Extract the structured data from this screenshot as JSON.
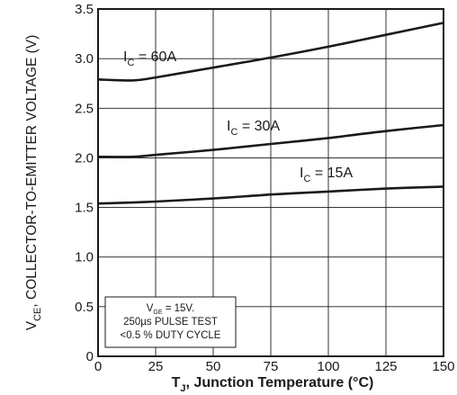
{
  "chart_data": {
    "type": "line",
    "xlim": [
      0,
      150
    ],
    "ylim": [
      0,
      3.5
    ],
    "x_ticks": [
      "0",
      "25",
      "50",
      "75",
      "100",
      "125",
      "150"
    ],
    "y_ticks": [
      "0",
      "0.5",
      "1.0",
      "1.5",
      "2.0",
      "2.5",
      "3.0",
      "3.5"
    ],
    "ylabel": {
      "main": "V",
      "sub": "CE",
      "rest": ", COLLECTOR-TO-EMITTER VOLTAGE (V)"
    },
    "xlabel": {
      "main": "T",
      "sub": "J",
      "rest": ", Junction Temperature (°C)"
    },
    "grid": true,
    "series": [
      {
        "name": "IC = 60A",
        "label": {
          "main": "I",
          "sub": "C",
          "rest": " = 60A"
        },
        "x": [
          0,
          15,
          25,
          50,
          75,
          100,
          125,
          150
        ],
        "y": [
          2.79,
          2.78,
          2.81,
          2.91,
          3.01,
          3.12,
          3.24,
          3.36
        ]
      },
      {
        "name": "IC = 30A",
        "label": {
          "main": "I",
          "sub": "C",
          "rest": " = 30A"
        },
        "x": [
          0,
          15,
          25,
          50,
          75,
          100,
          125,
          150
        ],
        "y": [
          2.01,
          2.01,
          2.03,
          2.08,
          2.14,
          2.2,
          2.27,
          2.33
        ]
      },
      {
        "name": "IC = 15A",
        "label": {
          "main": "I",
          "sub": "C",
          "rest": " = 15A"
        },
        "x": [
          0,
          15,
          25,
          50,
          75,
          100,
          125,
          150
        ],
        "y": [
          1.54,
          1.55,
          1.56,
          1.59,
          1.63,
          1.66,
          1.69,
          1.71
        ]
      }
    ],
    "annotation": {
      "line1": {
        "main": "V",
        "sub": "GE",
        "rest": " = 15V."
      },
      "line2": "250µs PULSE TEST",
      "line3": "<0.5 % DUTY CYCLE"
    }
  }
}
